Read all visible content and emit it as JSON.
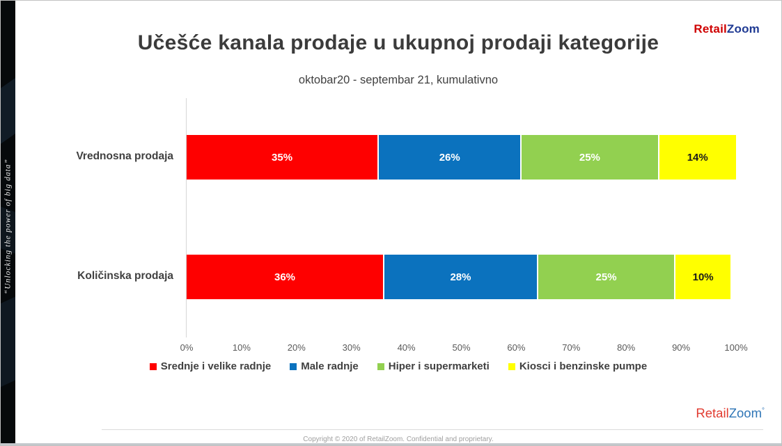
{
  "slide": {
    "brand_top": {
      "retail": "Retail",
      "zoom": "Zoom"
    },
    "brand_bottom": {
      "retail": "Retail",
      "zoom": "Zoom",
      "mark": "°"
    },
    "side_tagline": "“Unlocking the power of big data”",
    "copyright": "Copyright © 2020 of RetailZoom. Confidential and proprietary."
  },
  "chart_data": {
    "type": "bar",
    "orientation": "horizontal",
    "stacked": true,
    "title": "Učešće kanala prodaje u ukupnoj prodaji kategorije",
    "subtitle": "oktobar20 - septembar 21, kumulativno",
    "categories": [
      "Vrednosna prodaja",
      "Količinska prodaja"
    ],
    "series": [
      {
        "name": "Srednje i velike radnje",
        "color": "#FE0000",
        "label_color": "#FFFFFF",
        "values": [
          35,
          36
        ]
      },
      {
        "name": "Male radnje",
        "color": "#0B72BE",
        "label_color": "#FFFFFF",
        "values": [
          26,
          28
        ]
      },
      {
        "name": "Hiper i supermarketi",
        "color": "#92D050",
        "label_color": "#FFFFFF",
        "values": [
          25,
          25
        ]
      },
      {
        "name": "Kiosci i benzinske pumpe",
        "color": "#FFFF00",
        "label_color": "#1A1A1A",
        "values": [
          14,
          10
        ]
      }
    ],
    "value_suffix": "%",
    "x_ticks": [
      "0%",
      "10%",
      "20%",
      "30%",
      "40%",
      "50%",
      "60%",
      "70%",
      "80%",
      "90%",
      "100%"
    ],
    "xlim": [
      0,
      100
    ],
    "legend_position": "bottom",
    "grid": false
  }
}
